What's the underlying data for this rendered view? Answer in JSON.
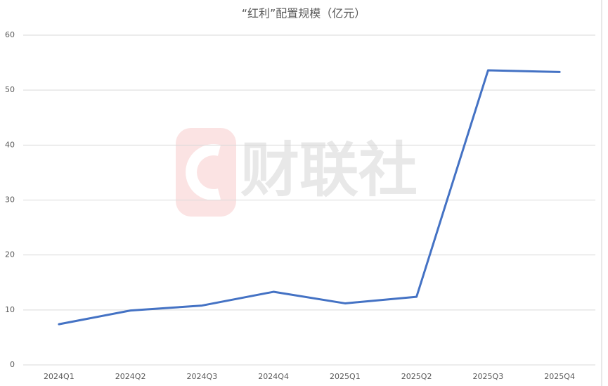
{
  "chart_data": {
    "type": "line",
    "title": "“红利”配置规模（亿元）",
    "watermark": "财联社",
    "categories": [
      "2024Q1",
      "2024Q2",
      "2024Q3",
      "2024Q4",
      "2025Q1",
      "2025Q2",
      "2025Q3",
      "2025Q4"
    ],
    "values": [
      7.4,
      9.9,
      10.8,
      13.3,
      11.2,
      12.4,
      53.6,
      53.3
    ],
    "color": "#4472c4",
    "ylim": [
      0,
      60
    ],
    "yticks": [
      0,
      10,
      20,
      30,
      40,
      50,
      60
    ],
    "grid": true
  }
}
